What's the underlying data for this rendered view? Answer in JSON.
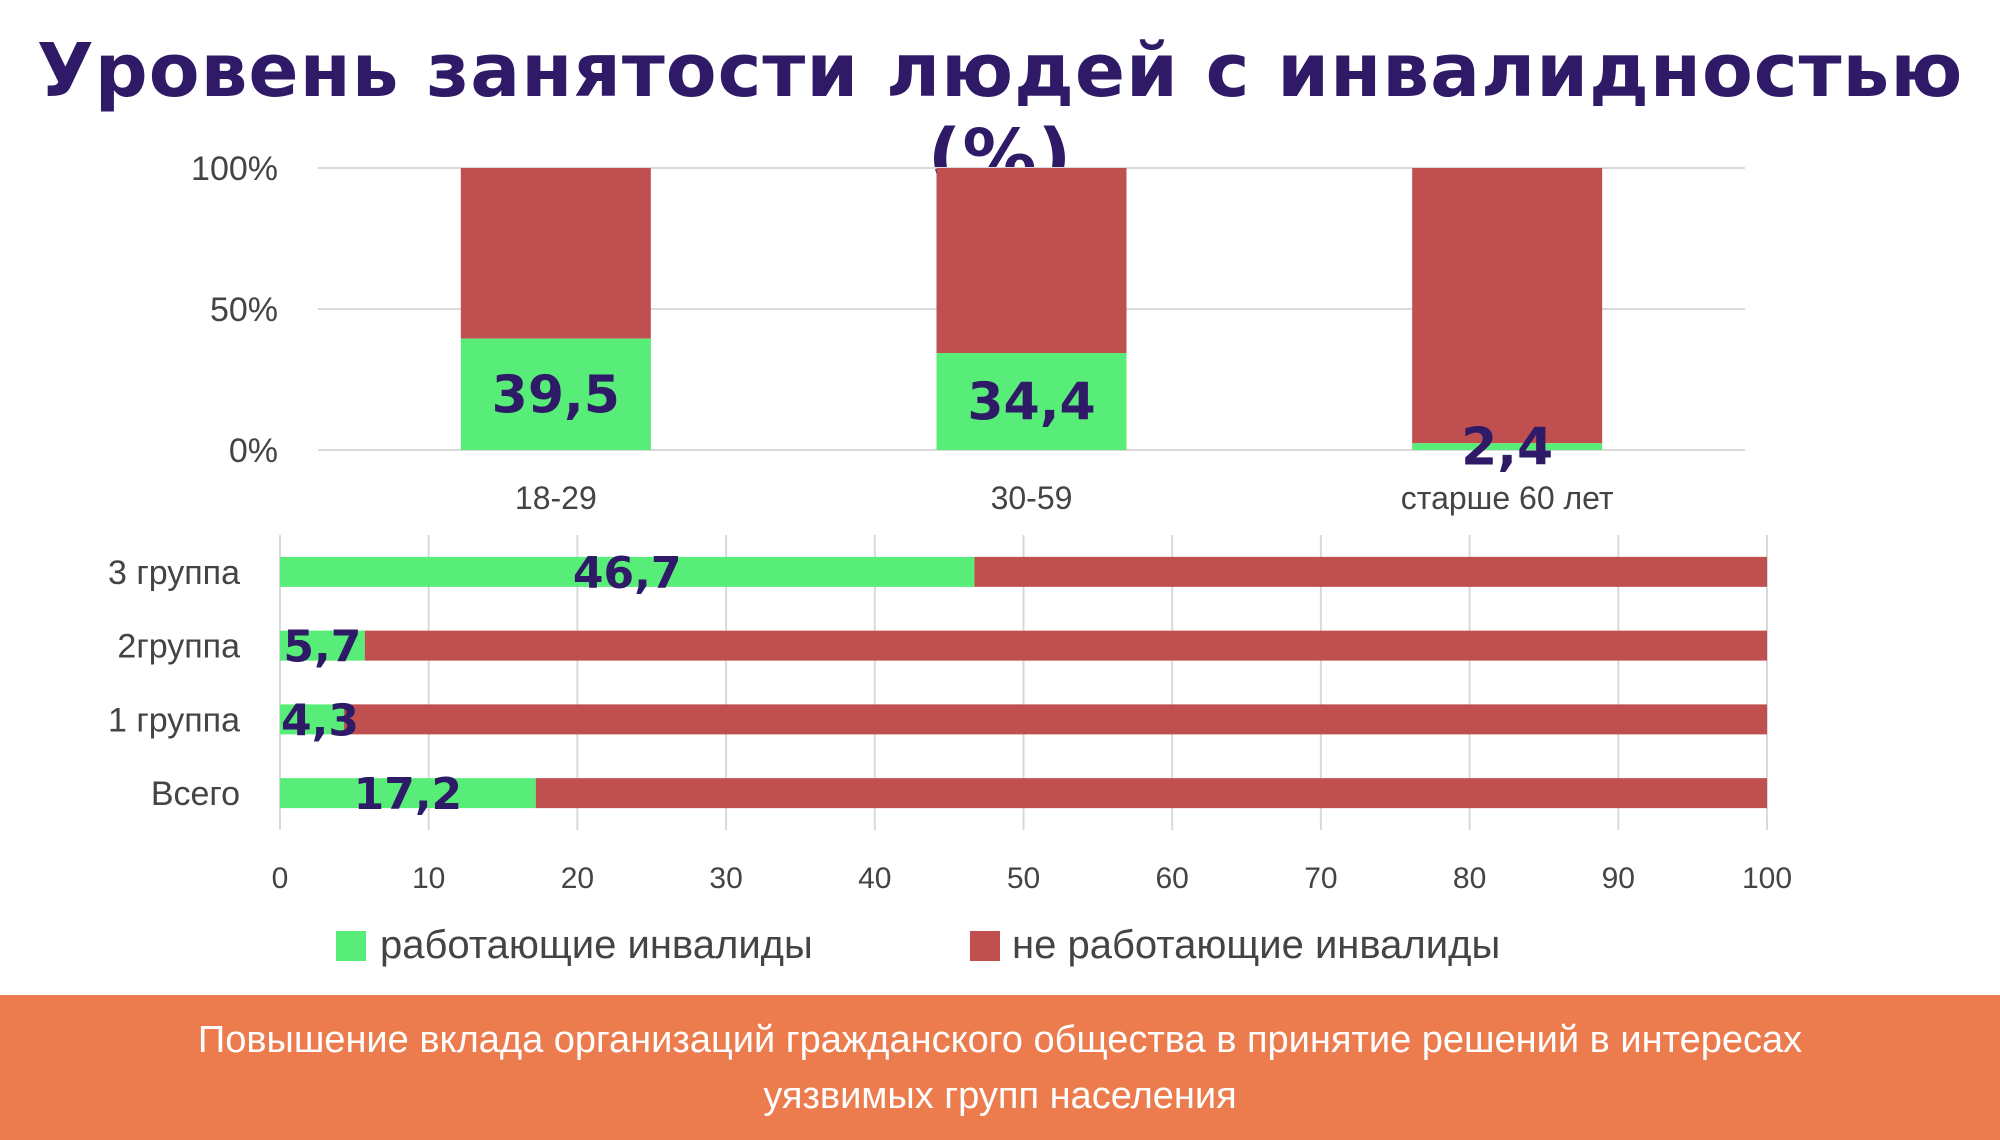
{
  "title": "Уровень занятости людей с инвалидностью (%)",
  "colors": {
    "working": "#58ec78",
    "not_working": "#c05050",
    "title": "#2e1a66",
    "banner": "#ec7c4d",
    "grid": "#d9d9d9"
  },
  "legend": {
    "working": "работающие инвалиды",
    "not_working": "не работающие инвалиды"
  },
  "footer": {
    "text": "Повышение вклада организаций гражданского общества в принятие решений в интересах\nуязвимых групп населения"
  },
  "chart_data": [
    {
      "type": "bar",
      "stacked": true,
      "percent": true,
      "orientation": "vertical",
      "categories": [
        "18-29",
        "30-59",
        "старше 60 лет"
      ],
      "series": [
        {
          "name": "работающие инвалиды",
          "values": [
            39.5,
            34.4,
            2.4
          ]
        },
        {
          "name": "не работающие инвалиды",
          "values": [
            60.5,
            65.6,
            97.6
          ]
        }
      ],
      "data_labels": [
        "39,5",
        "34,4",
        "2,4"
      ],
      "yticks": [
        "0%",
        "50%",
        "100%"
      ],
      "ylim": [
        0,
        100
      ],
      "grid": true
    },
    {
      "type": "bar",
      "stacked": true,
      "orientation": "horizontal",
      "categories": [
        "3 группа",
        "2группа",
        "1 группа",
        "Всего"
      ],
      "series": [
        {
          "name": "работающие инвалиды",
          "values": [
            46.7,
            5.7,
            4.3,
            17.2
          ]
        },
        {
          "name": "не работающие инвалиды",
          "values": [
            53.3,
            94.3,
            95.7,
            82.8
          ]
        }
      ],
      "data_labels": [
        "46,7",
        "5,7",
        "4,3",
        "17,2"
      ],
      "xticks": [
        "0",
        "10",
        "20",
        "30",
        "40",
        "50",
        "60",
        "70",
        "80",
        "90",
        "100"
      ],
      "xlim": [
        0,
        100
      ],
      "grid": true,
      "legend_position": "bottom"
    }
  ]
}
